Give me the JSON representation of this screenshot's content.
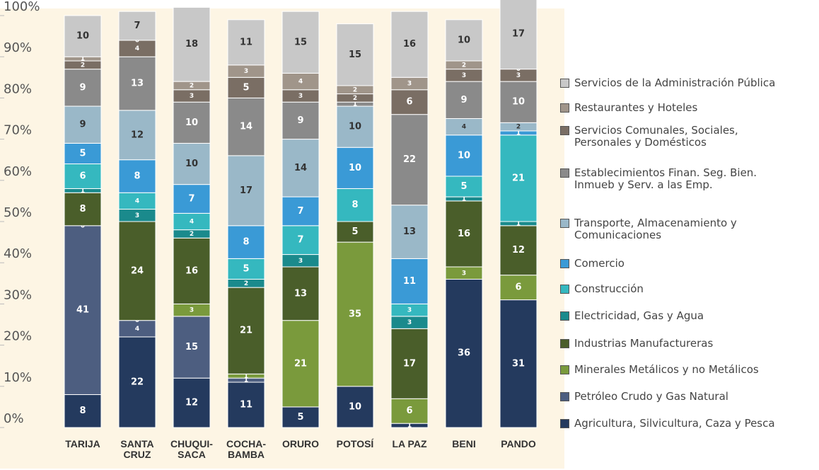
{
  "chart_data": {
    "type": "stacked_bar",
    "categories": [
      "TARIJA",
      "SANTA\nCRUZ",
      "CHUQUI-\nSACA",
      "COCHA-\nBAMBA",
      "ORURO",
      "POTOSÍ",
      "LA PAZ",
      "BENI",
      "PANDO"
    ],
    "series": [
      {
        "name": "Agricultura, Silvicultura, Caza y Pesca",
        "color": "#243a5e",
        "values": [
          8,
          22,
          12,
          11,
          5,
          10,
          1,
          36,
          31
        ]
      },
      {
        "name": "Petróleo Crudo y Gas Natural",
        "color": "#4d5e80",
        "values": [
          41,
          4,
          15,
          1,
          null,
          null,
          null,
          null,
          null
        ]
      },
      {
        "name": "Minerales Metálicos y no Metálicos",
        "color": "#7a9a3c",
        "values": [
          0,
          0,
          3,
          1,
          21,
          35,
          6,
          3,
          6
        ]
      },
      {
        "name": "Industrias Manufactureras",
        "color": "#4a5e2a",
        "values": [
          8,
          24,
          16,
          21,
          13,
          5,
          17,
          16,
          12
        ]
      },
      {
        "name": "Electricidad, Gas y Agua",
        "color": "#1a8a8c",
        "values": [
          1,
          3,
          2,
          2,
          3,
          null,
          3,
          1,
          1
        ]
      },
      {
        "name": "Construcción",
        "color": "#35b8bf",
        "values": [
          6,
          4,
          4,
          5,
          7,
          8,
          3,
          5,
          21
        ]
      },
      {
        "name": "Comercio",
        "color": "#3a9ad6",
        "values": [
          5,
          8,
          7,
          8,
          7,
          10,
          11,
          10,
          1
        ]
      },
      {
        "name": "Transporte, Almacenamiento y\nComunicaciones",
        "color": "#9ab8c8",
        "values": [
          9,
          12,
          10,
          17,
          14,
          10,
          13,
          4,
          2
        ]
      },
      {
        "name": "Establecimientos Finan. Seg. Bien.\nInmueb y Serv. a las Emp.",
        "color": "#8a8a8a",
        "values": [
          9,
          13,
          10,
          14,
          9,
          1,
          22,
          9,
          10
        ]
      },
      {
        "name": "Servicios Comunales, Sociales,\nPersonales y Domésticos",
        "color": "#7a6e64",
        "values": [
          2,
          4,
          3,
          5,
          3,
          2,
          6,
          3,
          3
        ]
      },
      {
        "name": "Restaurantes y Hoteles",
        "color": "#a0958a",
        "values": [
          1,
          0,
          2,
          3,
          4,
          2,
          3,
          2,
          0
        ]
      },
      {
        "name": "Servicios de la Administración Pública",
        "color": "#c8c8c8",
        "values": [
          10,
          7,
          18,
          11,
          15,
          15,
          16,
          10,
          17
        ]
      }
    ],
    "ylim": [
      0,
      100
    ],
    "yticks": [
      {
        "value": 0,
        "label": "0%"
      },
      {
        "value": 10,
        "label": "10%"
      },
      {
        "value": 20,
        "label": "20%"
      },
      {
        "value": 30,
        "label": "30%"
      },
      {
        "value": 40,
        "label": "40%"
      },
      {
        "value": 50,
        "label": "50%"
      },
      {
        "value": 60,
        "label": "60%"
      },
      {
        "value": 70,
        "label": "70%"
      },
      {
        "value": 80,
        "label": "80%"
      },
      {
        "value": 90,
        "label": "90%"
      },
      {
        "value": 100,
        "label": "100%"
      }
    ],
    "grid": false
  }
}
